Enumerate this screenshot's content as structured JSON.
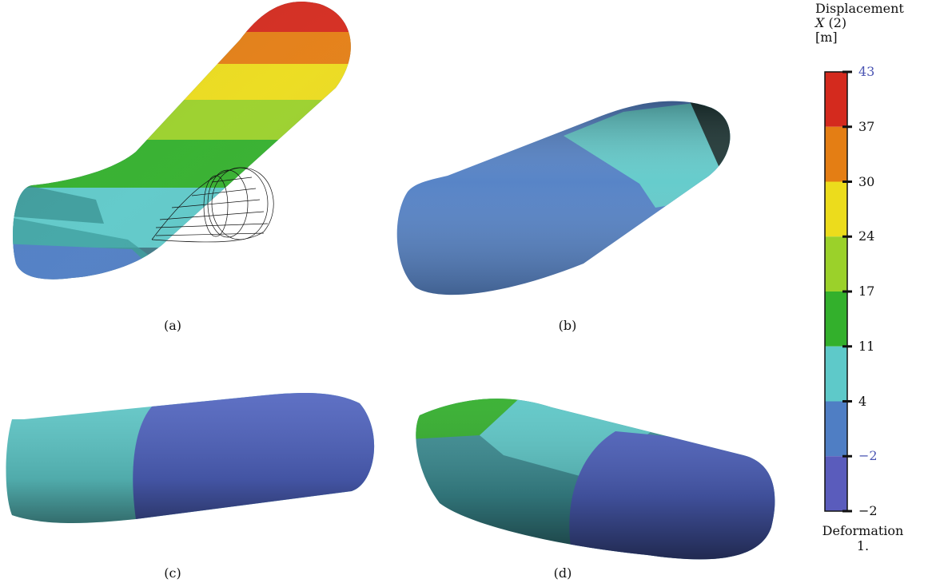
{
  "panels": [
    {
      "caption": "(a)"
    },
    {
      "caption": "(b)"
    },
    {
      "caption": "(c)"
    },
    {
      "caption": "(d)"
    }
  ],
  "legend": {
    "title_line1": "Displacement",
    "title_var": "X",
    "title_var_suffix": " (2)",
    "title_unit": "[m]",
    "ticks": [
      "43",
      "37",
      "30",
      "24",
      "17",
      "11",
      "4",
      "−2",
      "−2"
    ],
    "bands": [
      "#d42a1e",
      "#e47e14",
      "#ecdc1c",
      "#9bd12a",
      "#33b02c",
      "#5ec9c9",
      "#4f7ec4",
      "#5a5cbc"
    ],
    "footer_line1": "Deformation",
    "footer_line2": "1.",
    "max_color": "#4b55b3"
  }
}
